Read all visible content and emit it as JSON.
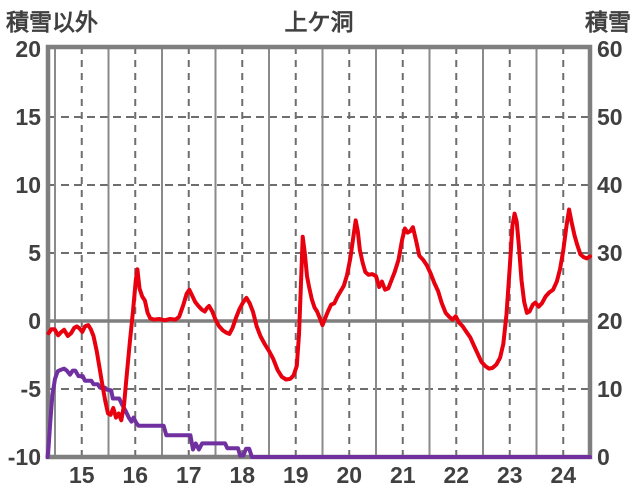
{
  "header": {
    "left_axis_title": "積雪以外",
    "chart_title": "上ケ洞",
    "right_axis_title": "積雪"
  },
  "colors": {
    "temperature_line": "#e8000f",
    "snow_line": "#7030a0",
    "grid_solid": "#8a8a8a",
    "grid_dashed": "#6e6e6e",
    "zero_line": "#7f7f7f",
    "border": "#7f7f7f",
    "text": "#404040",
    "background": "#ffffff"
  },
  "chart_data": {
    "type": "line",
    "title": "上ケ洞",
    "grid": "on",
    "legend": "none",
    "x_axis": {
      "labels": [
        "15",
        "16",
        "17",
        "18",
        "19",
        "20",
        "21",
        "22",
        "23",
        "24"
      ],
      "label_positions": [
        15.5,
        16.5,
        17.5,
        18.5,
        19.5,
        20.5,
        21.5,
        22.5,
        23.5,
        24.5
      ],
      "range": [
        14.87,
        25.0
      ],
      "solid_gridlines": [
        15,
        16,
        17,
        18,
        19,
        20,
        21,
        22,
        23,
        24
      ],
      "dashed_gridlines": [
        15.5,
        16.5,
        17.5,
        18.5,
        19.5,
        20.5,
        21.5,
        22.5,
        23.5,
        24.5
      ]
    },
    "left_axis": {
      "title": "積雪以外",
      "ticks": [
        20,
        15,
        10,
        5,
        0,
        -5,
        -10
      ],
      "range": [
        -10,
        20
      ],
      "dashed_gridlines": [
        15,
        10,
        5,
        -5
      ],
      "zero_line": 0
    },
    "right_axis": {
      "title": "積雪",
      "ticks": [
        60,
        50,
        40,
        30,
        20,
        10,
        0
      ],
      "range": [
        0,
        60
      ]
    },
    "series": [
      {
        "name": "積雪",
        "axis": "right",
        "color": "#7030a0",
        "points": [
          [
            14.86,
            0
          ],
          [
            14.88,
            1.5
          ],
          [
            14.91,
            5
          ],
          [
            14.95,
            9
          ],
          [
            15.0,
            11.5
          ],
          [
            15.05,
            12.6
          ],
          [
            15.1,
            12.8
          ],
          [
            15.17,
            13.0
          ],
          [
            15.22,
            12.7
          ],
          [
            15.28,
            12.1
          ],
          [
            15.33,
            12.7
          ],
          [
            15.38,
            12.7
          ],
          [
            15.44,
            11.9
          ],
          [
            15.52,
            11.9
          ],
          [
            15.56,
            11.2
          ],
          [
            15.68,
            11.2
          ],
          [
            15.72,
            10.7
          ],
          [
            15.8,
            10.7
          ],
          [
            15.84,
            10.2
          ],
          [
            15.93,
            10.2
          ],
          [
            15.97,
            9.9
          ],
          [
            16.05,
            9.8
          ],
          [
            16.08,
            8.6
          ],
          [
            16.2,
            8.6
          ],
          [
            16.26,
            7.6
          ],
          [
            16.32,
            6.8
          ],
          [
            16.38,
            5.8
          ],
          [
            16.43,
            5.2
          ],
          [
            16.47,
            5.8
          ],
          [
            16.52,
            5.0
          ],
          [
            16.56,
            4.6
          ],
          [
            17.03,
            4.6
          ],
          [
            17.08,
            3.2
          ],
          [
            17.53,
            3.2
          ],
          [
            17.58,
            1.1
          ],
          [
            17.63,
            2.0
          ],
          [
            17.69,
            1.1
          ],
          [
            17.75,
            2.0
          ],
          [
            18.18,
            2.0
          ],
          [
            18.22,
            1.3
          ],
          [
            18.42,
            1.3
          ],
          [
            18.46,
            0.2
          ],
          [
            18.52,
            0.2
          ],
          [
            18.57,
            1.2
          ],
          [
            18.63,
            1.2
          ],
          [
            18.68,
            0
          ],
          [
            25.0,
            0
          ]
        ]
      },
      {
        "name": "積雪以外",
        "axis": "left",
        "color": "#e8000f",
        "points": [
          [
            14.88,
            -0.9
          ],
          [
            14.93,
            -0.6
          ],
          [
            14.99,
            -0.6
          ],
          [
            15.06,
            -1.05
          ],
          [
            15.12,
            -0.8
          ],
          [
            15.17,
            -0.65
          ],
          [
            15.24,
            -1.1
          ],
          [
            15.3,
            -0.9
          ],
          [
            15.36,
            -0.5
          ],
          [
            15.41,
            -0.4
          ],
          [
            15.46,
            -0.55
          ],
          [
            15.51,
            -0.8
          ],
          [
            15.56,
            -0.4
          ],
          [
            15.62,
            -0.3
          ],
          [
            15.67,
            -0.6
          ],
          [
            15.72,
            -1.1
          ],
          [
            15.78,
            -2.2
          ],
          [
            15.84,
            -3.6
          ],
          [
            15.89,
            -4.8
          ],
          [
            15.94,
            -5.9
          ],
          [
            15.99,
            -6.8
          ],
          [
            16.04,
            -6.9
          ],
          [
            16.09,
            -6.4
          ],
          [
            16.14,
            -7.1
          ],
          [
            16.19,
            -6.8
          ],
          [
            16.24,
            -7.3
          ],
          [
            16.29,
            -6.2
          ],
          [
            16.34,
            -4.0
          ],
          [
            16.4,
            -1.5
          ],
          [
            16.46,
            0.8
          ],
          [
            16.51,
            3.0
          ],
          [
            16.54,
            3.8
          ],
          [
            16.58,
            2.4
          ],
          [
            16.63,
            1.8
          ],
          [
            16.68,
            1.5
          ],
          [
            16.73,
            0.6
          ],
          [
            16.78,
            0.2
          ],
          [
            16.85,
            0.1
          ],
          [
            16.95,
            0.15
          ],
          [
            17.05,
            0.05
          ],
          [
            17.15,
            0.15
          ],
          [
            17.25,
            0.1
          ],
          [
            17.32,
            0.3
          ],
          [
            17.4,
            1.2
          ],
          [
            17.46,
            2.0
          ],
          [
            17.51,
            2.3
          ],
          [
            17.56,
            1.9
          ],
          [
            17.62,
            1.4
          ],
          [
            17.68,
            1.1
          ],
          [
            17.74,
            0.85
          ],
          [
            17.8,
            0.7
          ],
          [
            17.84,
            0.95
          ],
          [
            17.88,
            1.1
          ],
          [
            17.94,
            0.7
          ],
          [
            18.0,
            0.1
          ],
          [
            18.07,
            -0.4
          ],
          [
            18.14,
            -0.7
          ],
          [
            18.2,
            -0.85
          ],
          [
            18.26,
            -0.95
          ],
          [
            18.32,
            -0.5
          ],
          [
            18.38,
            0.2
          ],
          [
            18.45,
            0.9
          ],
          [
            18.52,
            1.4
          ],
          [
            18.58,
            1.7
          ],
          [
            18.64,
            1.3
          ],
          [
            18.7,
            0.7
          ],
          [
            18.77,
            -0.4
          ],
          [
            18.84,
            -1.1
          ],
          [
            18.92,
            -1.7
          ],
          [
            19.0,
            -2.2
          ],
          [
            19.08,
            -2.8
          ],
          [
            19.16,
            -3.6
          ],
          [
            19.24,
            -4.1
          ],
          [
            19.32,
            -4.3
          ],
          [
            19.4,
            -4.25
          ],
          [
            19.46,
            -4.0
          ],
          [
            19.52,
            -3.3
          ],
          [
            19.56,
            -1.0
          ],
          [
            19.6,
            3.0
          ],
          [
            19.63,
            6.2
          ],
          [
            19.67,
            5.0
          ],
          [
            19.71,
            3.3
          ],
          [
            19.75,
            2.5
          ],
          [
            19.8,
            1.6
          ],
          [
            19.85,
            1.0
          ],
          [
            19.9,
            0.7
          ],
          [
            19.96,
            0.1
          ],
          [
            20.0,
            -0.3
          ],
          [
            20.05,
            0.2
          ],
          [
            20.1,
            0.7
          ],
          [
            20.16,
            1.2
          ],
          [
            20.22,
            1.3
          ],
          [
            20.28,
            1.8
          ],
          [
            20.34,
            2.2
          ],
          [
            20.4,
            2.6
          ],
          [
            20.46,
            3.4
          ],
          [
            20.52,
            4.6
          ],
          [
            20.57,
            6.0
          ],
          [
            20.62,
            7.4
          ],
          [
            20.66,
            6.6
          ],
          [
            20.7,
            5.2
          ],
          [
            20.75,
            4.3
          ],
          [
            20.8,
            3.6
          ],
          [
            20.86,
            3.4
          ],
          [
            20.93,
            3.45
          ],
          [
            21.0,
            3.3
          ],
          [
            21.06,
            2.5
          ],
          [
            21.11,
            2.9
          ],
          [
            21.17,
            2.3
          ],
          [
            21.23,
            2.4
          ],
          [
            21.29,
            3.0
          ],
          [
            21.35,
            3.6
          ],
          [
            21.42,
            4.5
          ],
          [
            21.49,
            6.0
          ],
          [
            21.54,
            6.8
          ],
          [
            21.59,
            6.5
          ],
          [
            21.64,
            6.6
          ],
          [
            21.69,
            6.9
          ],
          [
            21.75,
            5.9
          ],
          [
            21.81,
            4.8
          ],
          [
            21.88,
            4.5
          ],
          [
            21.95,
            4.1
          ],
          [
            22.02,
            3.5
          ],
          [
            22.09,
            2.8
          ],
          [
            22.16,
            2.2
          ],
          [
            22.23,
            1.3
          ],
          [
            22.3,
            0.6
          ],
          [
            22.37,
            0.3
          ],
          [
            22.43,
            0.1
          ],
          [
            22.49,
            0.35
          ],
          [
            22.55,
            -0.1
          ],
          [
            22.62,
            -0.4
          ],
          [
            22.69,
            -0.8
          ],
          [
            22.76,
            -1.2
          ],
          [
            22.83,
            -1.8
          ],
          [
            22.9,
            -2.4
          ],
          [
            22.97,
            -3.0
          ],
          [
            23.04,
            -3.3
          ],
          [
            23.11,
            -3.5
          ],
          [
            23.18,
            -3.45
          ],
          [
            23.25,
            -3.2
          ],
          [
            23.32,
            -2.7
          ],
          [
            23.38,
            -1.7
          ],
          [
            23.44,
            0.5
          ],
          [
            23.5,
            4.0
          ],
          [
            23.55,
            7.0
          ],
          [
            23.59,
            7.9
          ],
          [
            23.63,
            7.3
          ],
          [
            23.67,
            5.6
          ],
          [
            23.72,
            3.0
          ],
          [
            23.77,
            1.4
          ],
          [
            23.82,
            0.6
          ],
          [
            23.87,
            0.7
          ],
          [
            23.93,
            1.2
          ],
          [
            23.98,
            1.35
          ],
          [
            24.04,
            1.05
          ],
          [
            24.1,
            1.3
          ],
          [
            24.17,
            1.8
          ],
          [
            24.24,
            2.1
          ],
          [
            24.31,
            2.3
          ],
          [
            24.38,
            2.9
          ],
          [
            24.44,
            3.8
          ],
          [
            24.5,
            5.2
          ],
          [
            24.56,
            7.0
          ],
          [
            24.61,
            8.2
          ],
          [
            24.66,
            7.2
          ],
          [
            24.71,
            6.3
          ],
          [
            24.76,
            5.6
          ],
          [
            24.82,
            4.9
          ],
          [
            24.88,
            4.7
          ],
          [
            24.94,
            4.6
          ],
          [
            25.0,
            4.75
          ]
        ]
      }
    ]
  }
}
